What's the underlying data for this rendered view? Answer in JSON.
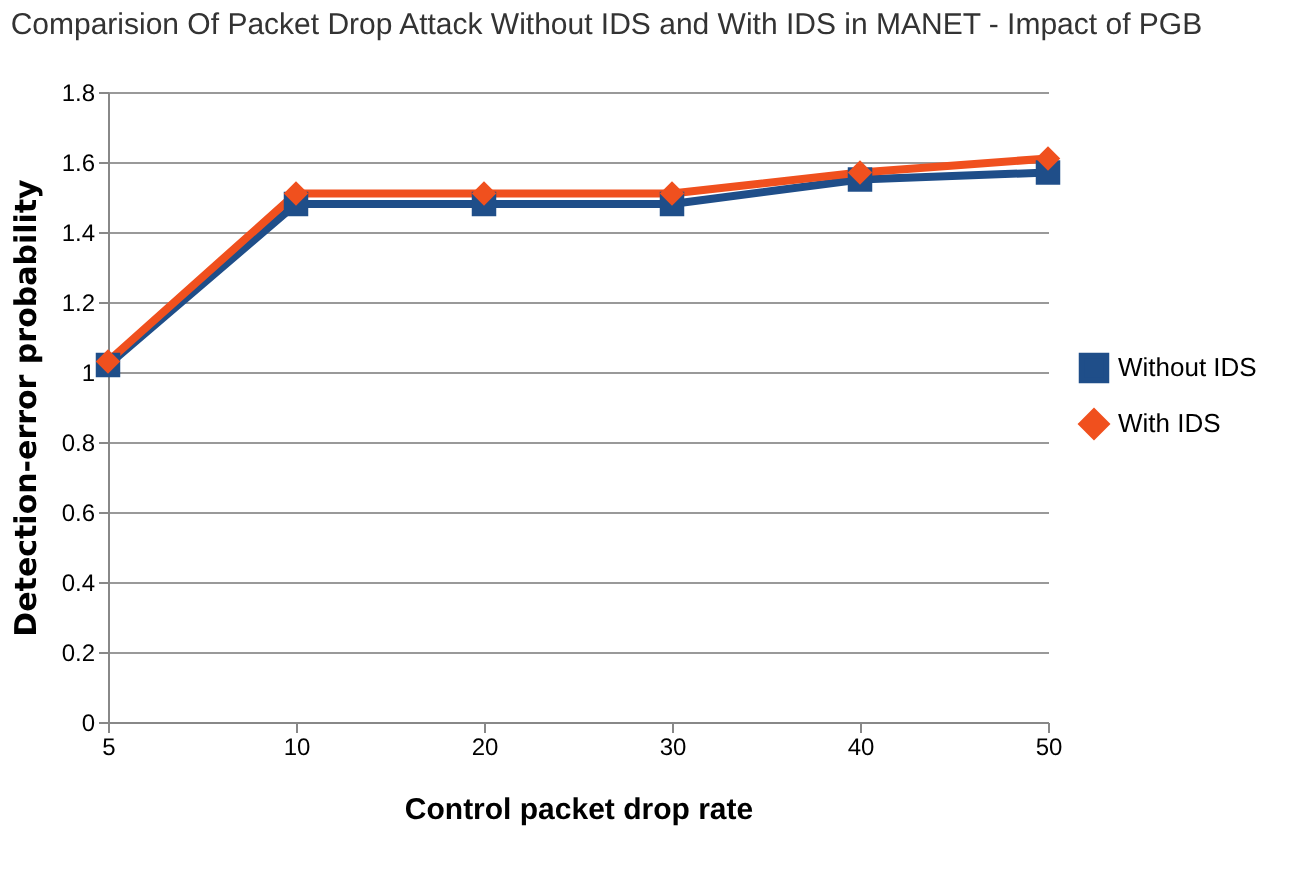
{
  "chart_data": {
    "type": "line",
    "title": "Comparision Of Packet Drop Attack Without IDS and With IDS in MANET - Impact of PGB",
    "xlabel": "Control packet drop rate",
    "ylabel": "Detection-error probability",
    "categories": [
      "5",
      "10",
      "20",
      "30",
      "40",
      "50"
    ],
    "series": [
      {
        "name": "Without IDS",
        "color": "#1f4e89",
        "marker": "square",
        "values": [
          1.02,
          1.48,
          1.48,
          1.48,
          1.55,
          1.57
        ]
      },
      {
        "name": "With IDS",
        "color": "#f0501e",
        "marker": "diamond",
        "values": [
          1.03,
          1.51,
          1.51,
          1.51,
          1.57,
          1.61
        ]
      }
    ],
    "ylim": [
      0,
      1.8
    ],
    "yticks": [
      0,
      0.2,
      0.4,
      0.6,
      0.8,
      1,
      1.2,
      1.4,
      1.6,
      1.8
    ],
    "grid": "y",
    "legend": "right",
    "line_style": "solid"
  }
}
